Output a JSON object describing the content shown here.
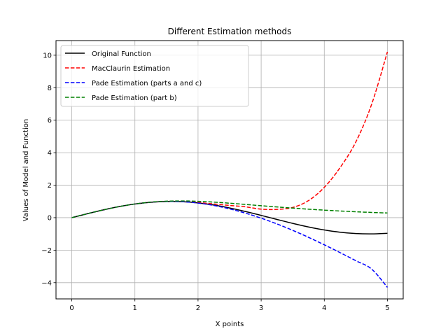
{
  "chart_data": {
    "type": "line",
    "title": "Different Estimation methods",
    "xlabel": "X points",
    "ylabel": "Values of Model and Function",
    "xlim": [
      -0.25,
      5.25
    ],
    "ylim": [
      -5.0,
      10.9
    ],
    "xticks": [
      0,
      1,
      2,
      3,
      4,
      5
    ],
    "yticks": [
      -4,
      -2,
      0,
      2,
      4,
      6,
      8,
      10
    ],
    "grid": true,
    "legend_position": "top-left",
    "series": [
      {
        "name": "Original Function",
        "color": "#000000",
        "dash": "solid",
        "x": [
          0,
          0.25,
          0.5,
          0.75,
          1.0,
          1.25,
          1.5,
          1.75,
          2.0,
          2.25,
          2.5,
          2.75,
          3.0,
          3.25,
          3.5,
          3.75,
          4.0,
          4.25,
          4.5,
          4.75,
          5.0
        ],
        "y": [
          0,
          0.247,
          0.479,
          0.682,
          0.841,
          0.949,
          0.997,
          0.984,
          0.909,
          0.778,
          0.598,
          0.382,
          0.141,
          -0.108,
          -0.351,
          -0.572,
          -0.757,
          -0.895,
          -0.978,
          -0.999,
          -0.959
        ]
      },
      {
        "name": "MacClaurin Estimation",
        "color": "#ff0000",
        "dash": "dashed",
        "x": [
          0,
          0.25,
          0.5,
          0.75,
          1.0,
          1.25,
          1.5,
          1.75,
          2.0,
          2.25,
          2.5,
          2.75,
          3.0,
          3.25,
          3.5,
          3.75,
          4.0,
          4.25,
          4.5,
          4.75,
          5.0
        ],
        "y": [
          0,
          0.247,
          0.479,
          0.682,
          0.842,
          0.95,
          1.001,
          0.997,
          0.933,
          0.844,
          0.753,
          0.668,
          0.525,
          0.509,
          0.63,
          1.053,
          1.866,
          3.081,
          4.664,
          6.977,
          10.208
        ]
      },
      {
        "name": "Pade Estimation (parts a and c)",
        "color": "#0000ff",
        "dash": "dashed",
        "x": [
          0,
          0.25,
          0.5,
          0.75,
          1.0,
          1.25,
          1.5,
          1.75,
          2.0,
          2.25,
          2.5,
          2.75,
          3.0,
          3.25,
          3.5,
          3.75,
          4.0,
          4.25,
          4.5,
          4.75,
          5.0
        ],
        "y": [
          0,
          0.247,
          0.479,
          0.682,
          0.842,
          0.95,
          0.998,
          0.982,
          0.9,
          0.752,
          0.543,
          0.28,
          -0.03,
          -0.385,
          -0.781,
          -1.21,
          -1.669,
          -2.15,
          -2.65,
          -3.164,
          -4.287
        ]
      },
      {
        "name": "Pade Estimation (part b)",
        "color": "#008000",
        "dash": "dashed",
        "x": [
          0,
          0.25,
          0.5,
          0.75,
          1.0,
          1.25,
          1.5,
          1.75,
          2.0,
          2.25,
          2.5,
          2.75,
          3.0,
          3.25,
          3.5,
          3.75,
          4.0,
          4.25,
          4.5,
          4.75,
          5.0
        ],
        "y": [
          0,
          0.247,
          0.479,
          0.682,
          0.843,
          0.955,
          1.014,
          1.029,
          1.008,
          0.958,
          0.891,
          0.815,
          0.736,
          0.66,
          0.589,
          0.523,
          0.464,
          0.411,
          0.364,
          0.323,
          0.287
        ]
      }
    ]
  }
}
